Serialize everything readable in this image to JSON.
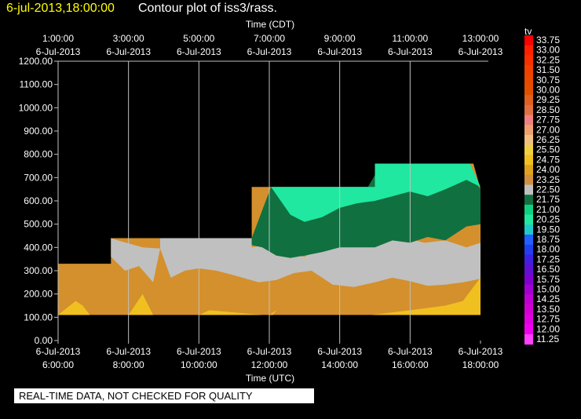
{
  "header": {
    "timestamp": "6-jul-2013,18:00:00",
    "title": "Contour plot of iss3/rass."
  },
  "footer": {
    "text": "REAL-TIME DATA, NOT CHECKED FOR QUALITY"
  },
  "colors": {
    "background": "#000000",
    "timestamp_text": "#ffff00",
    "grid": "#c0c0c0"
  },
  "chart_data": {
    "type": "heatmap",
    "top_axis_label": "Time (CDT)",
    "bottom_axis_label": "Time (UTC)",
    "top_ticks": [
      {
        "time": "1:00:00",
        "date": "6-Jul-2013"
      },
      {
        "time": "3:00:00",
        "date": "6-Jul-2013"
      },
      {
        "time": "5:00:00",
        "date": "6-Jul-2013"
      },
      {
        "time": "7:00:00",
        "date": "6-Jul-2013"
      },
      {
        "time": "9:00:00",
        "date": "6-Jul-2013"
      },
      {
        "time": "11:00:00",
        "date": "6-Jul-2013"
      },
      {
        "time": "13:00:00",
        "date": "6-Jul-2013"
      }
    ],
    "bottom_ticks": [
      {
        "date": "6-Jul-2013",
        "time": "6:00:00"
      },
      {
        "date": "6-Jul-2013",
        "time": "8:00:00"
      },
      {
        "date": "6-Jul-2013",
        "time": "10:00:00"
      },
      {
        "date": "6-Jul-2013",
        "time": "12:00:00"
      },
      {
        "date": "6-Jul-2013",
        "time": "14:00:00"
      },
      {
        "date": "6-Jul-2013",
        "time": "16:00:00"
      },
      {
        "date": "6-Jul-2013",
        "time": "18:00:00"
      }
    ],
    "x_range_utc_hours": [
      6,
      18
    ],
    "y_ticks": [
      "1200.00",
      "1100.00",
      "1000.00",
      "900.00",
      "800.00",
      "700.00",
      "600.00",
      "500.00",
      "400.00",
      "300.00",
      "200.00",
      "100.00",
      "0.00"
    ],
    "y_range": [
      0,
      1200
    ],
    "grid": true,
    "colorbar": {
      "title": "tv",
      "levels": [
        "33.75",
        "33.00",
        "32.25",
        "31.50",
        "30.75",
        "30.00",
        "29.25",
        "28.50",
        "27.75",
        "27.00",
        "26.25",
        "25.50",
        "24.75",
        "24.00",
        "23.25",
        "22.50",
        "21.75",
        "21.00",
        "20.25",
        "19.50",
        "18.75",
        "18.00",
        "17.25",
        "16.50",
        "15.75",
        "15.00",
        "14.25",
        "13.50",
        "12.75",
        "12.00",
        "11.25"
      ],
      "colors": [
        "#ff0000",
        "#ff2000",
        "#f83000",
        "#f04000",
        "#e84800",
        "#e05000",
        "#e06020",
        "#e07040",
        "#f08080",
        "#f0a070",
        "#f0c080",
        "#f0d040",
        "#f0c020",
        "#e0a020",
        "#d09040",
        "#c0c0c0",
        "#107040",
        "#10d080",
        "#20e8a0",
        "#20c8c8",
        "#2060ff",
        "#2040f0",
        "#4020e0",
        "#6010d0",
        "#8000d0",
        "#a000d0",
        "#c000d0",
        "#d000d0",
        "#e000e0",
        "#f000f0",
        "#ff40ff"
      ]
    },
    "regions": [
      {
        "name": "tv ~24.0 (orange)",
        "color": "#d4902c",
        "x": [
          6.0,
          7.5,
          7.5,
          11.5,
          11.5,
          12.05,
          12.05,
          13.0,
          15.0,
          17.0,
          17.8,
          18.0,
          18.0,
          6.0
        ],
        "y": [
          330,
          330,
          440,
          440,
          660,
          660,
          660,
          660,
          660,
          760,
          760,
          650,
          110,
          110
        ]
      },
      {
        "name": "tv ~22.5 (grey)",
        "color": "#c0c0c0",
        "x": [
          7.5,
          7.5,
          7.7,
          8.4,
          8.9,
          8.9,
          9.2,
          9.8,
          11.5,
          11.5,
          11.9,
          12.3,
          12.6,
          13.0,
          13.4,
          14.0,
          14.6,
          15.2,
          15.8,
          16.4,
          17.0,
          17.6,
          18.0,
          18.0,
          17.5,
          17.0,
          16.5,
          16.0,
          15.5,
          15.0,
          14.4,
          13.8,
          13.2,
          12.7,
          12.2,
          11.7,
          11.0,
          10.5,
          10.0,
          9.6,
          9.2,
          8.9,
          8.7,
          8.3,
          7.9,
          7.5
        ],
        "y": [
          440,
          440,
          430,
          400,
          395,
          440,
          440,
          440,
          440,
          400,
          410,
          380,
          370,
          360,
          390,
          400,
          430,
          420,
          445,
          420,
          430,
          400,
          420,
          265,
          250,
          240,
          235,
          255,
          270,
          250,
          230,
          240,
          300,
          290,
          260,
          250,
          280,
          300,
          310,
          300,
          270,
          395,
          250,
          320,
          300,
          360
        ]
      },
      {
        "name": "tv ~21.75 (dark green)",
        "color": "#107040",
        "x": [
          11.5,
          11.5,
          12.05,
          12.05,
          12.4,
          12.9,
          13.3,
          13.8,
          14.3,
          14.8,
          15.2,
          15.6,
          16.0,
          16.5,
          17.0,
          17.5,
          18.0,
          18.0,
          17.6,
          17.0,
          16.5,
          16.0,
          15.5,
          15.0,
          14.5,
          14.0,
          13.5,
          13.0,
          12.6,
          12.2,
          11.8,
          11.5
        ],
        "y": [
          410,
          440,
          660,
          660,
          640,
          650,
          640,
          640,
          660,
          660,
          760,
          760,
          760,
          740,
          760,
          760,
          650,
          500,
          490,
          430,
          445,
          420,
          430,
          400,
          400,
          400,
          380,
          365,
          355,
          365,
          400,
          410
        ]
      },
      {
        "name": "tv ~20.25 (light green)",
        "color": "#20e8a0",
        "x": [
          12.05,
          13.0,
          14.0,
          15.0,
          15.0,
          16.0,
          17.0,
          17.7,
          18.0,
          17.6,
          17.0,
          16.5,
          16.0,
          15.5,
          15.0,
          14.5,
          14.0,
          13.5,
          13.0,
          12.6,
          12.05
        ],
        "y": [
          660,
          660,
          660,
          660,
          760,
          760,
          760,
          760,
          660,
          690,
          650,
          620,
          640,
          620,
          600,
          590,
          570,
          530,
          510,
          540,
          660
        ]
      },
      {
        "name": "tv ~25.5 (yellow)",
        "color": "#f0c020",
        "x": [
          6.0,
          6.5,
          6.7,
          6.9,
          8.0,
          8.4,
          8.7,
          9.1,
          10.0,
          10.3,
          11.8,
          12.0,
          12.2,
          12.1,
          14.9,
          16.0,
          17.0,
          17.5,
          18.0,
          18.0,
          6.0
        ],
        "y": [
          110,
          170,
          150,
          110,
          110,
          200,
          110,
          110,
          110,
          130,
          110,
          110,
          130,
          110,
          110,
          130,
          150,
          170,
          270,
          110,
          110
        ]
      }
    ]
  }
}
